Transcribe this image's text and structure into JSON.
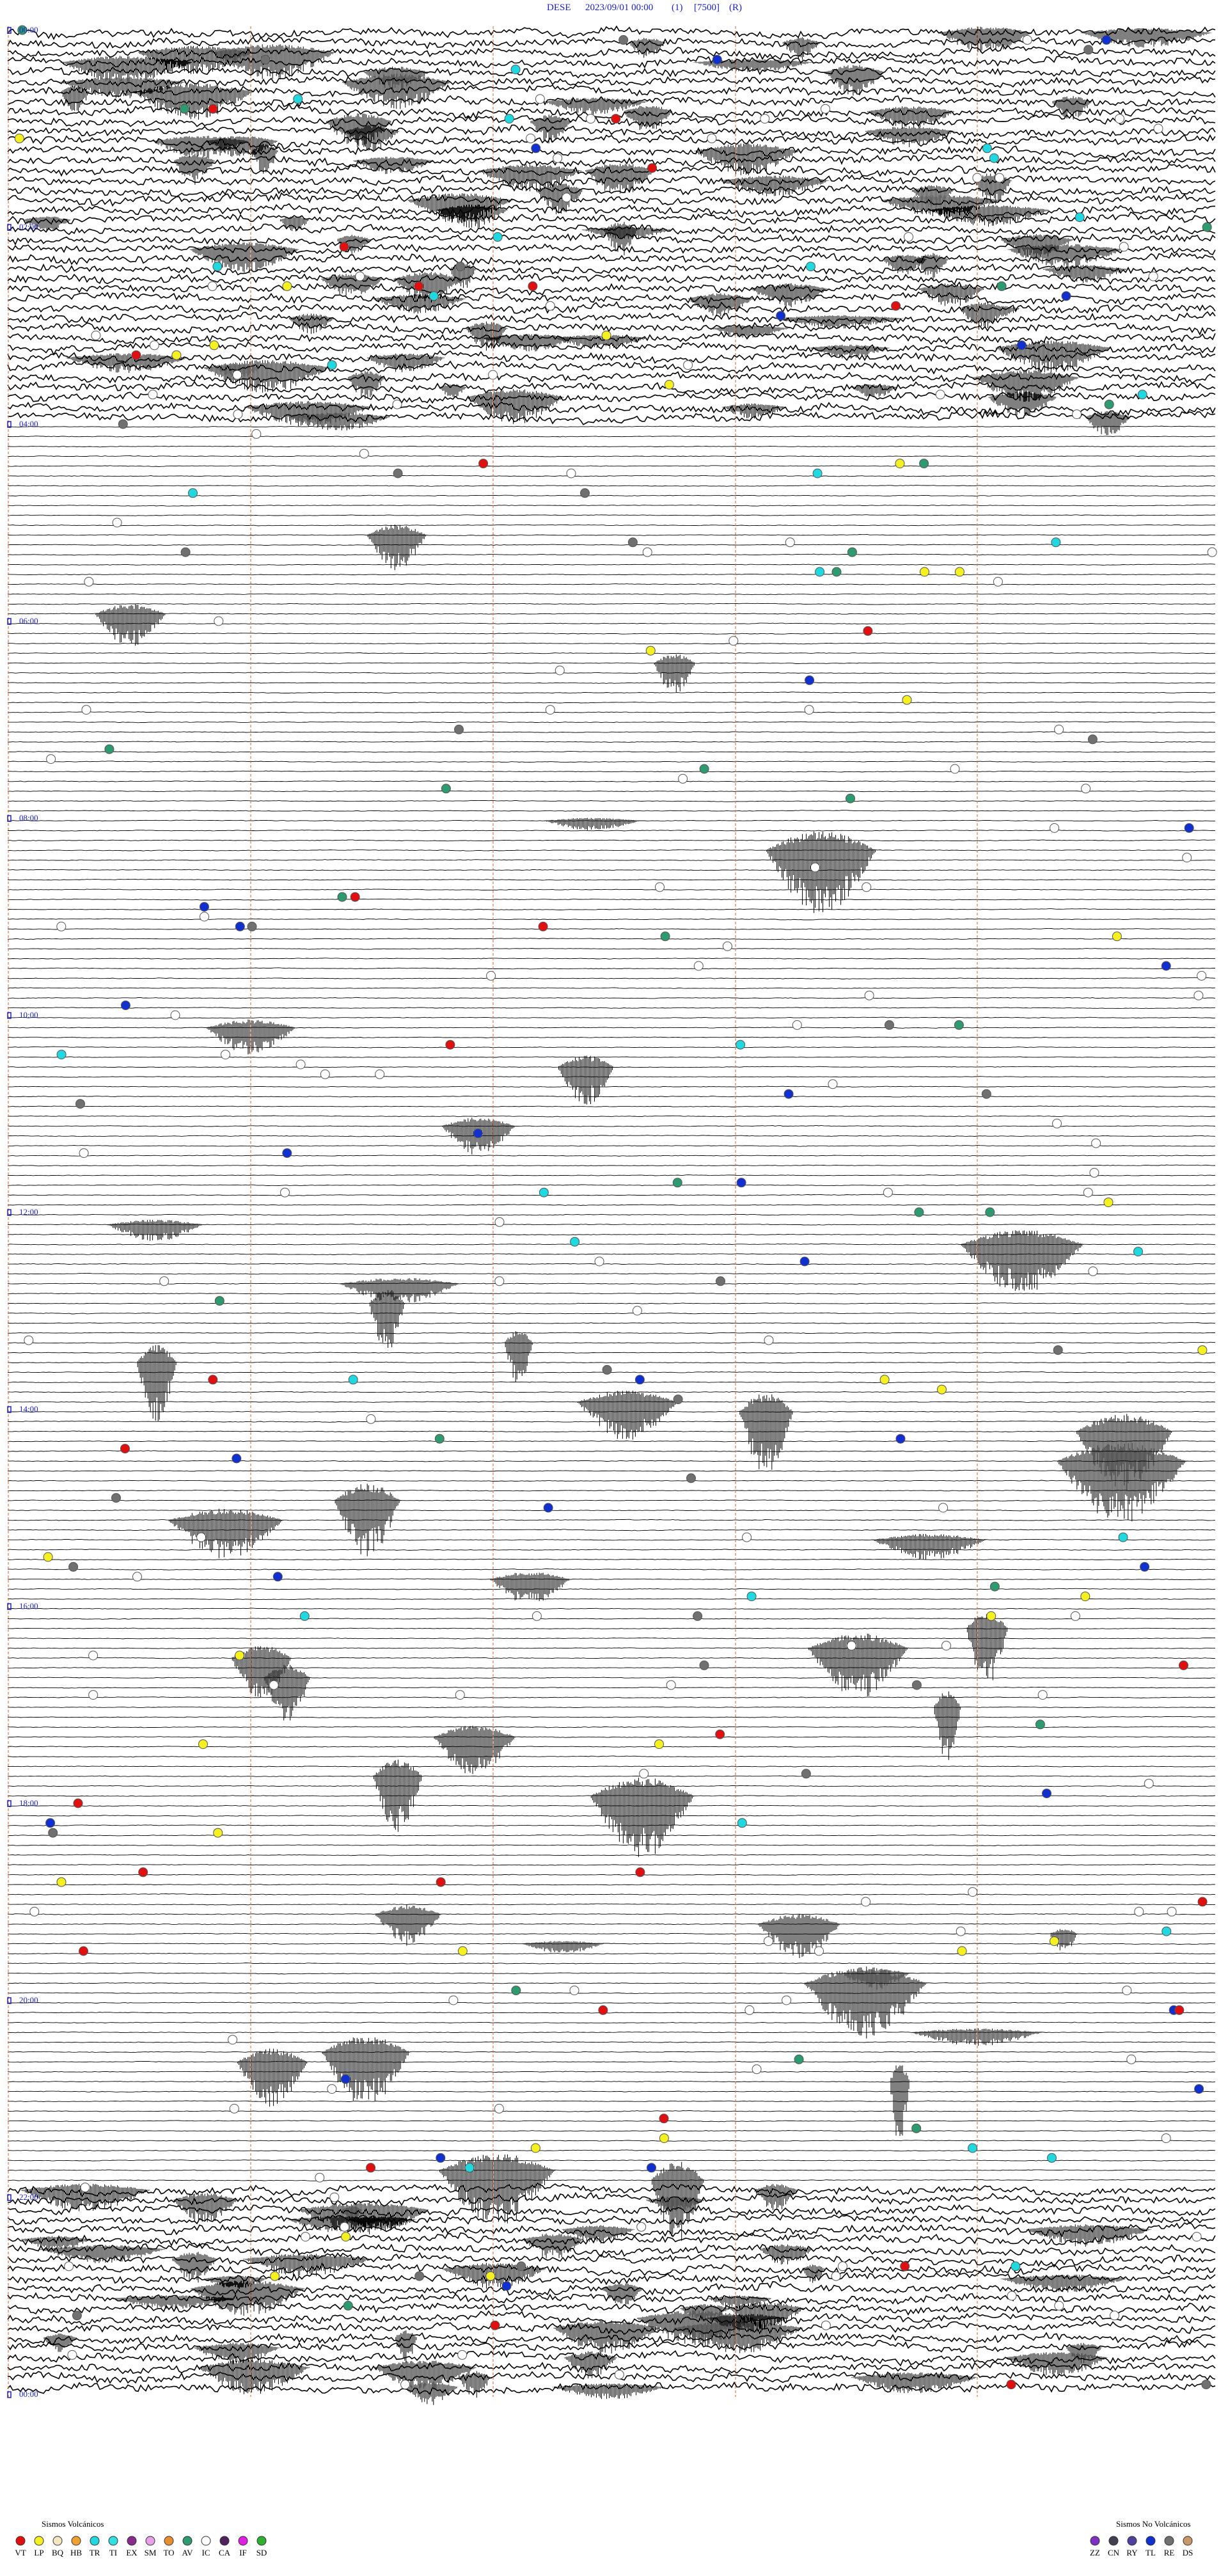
{
  "header": {
    "station": "DESE",
    "datetime": "2023/09/01 00:00",
    "channel": "(1)",
    "scale": "[7500]",
    "mode": "(R)"
  },
  "hour_labels": [
    "00:00",
    "02:00",
    "04:00",
    "06:00",
    "08:00",
    "10:00",
    "12:00",
    "14:00",
    "16:00",
    "18:00",
    "20:00",
    "22:00",
    "00:00"
  ],
  "legend_volcanic": {
    "title": "Sismos Volcánicos",
    "items": [
      {
        "code": "VT",
        "color": "#e01010"
      },
      {
        "code": "LP",
        "color": "#f5f020"
      },
      {
        "code": "BQ",
        "color": "#f4e6c0"
      },
      {
        "code": "HB",
        "color": "#f0a030"
      },
      {
        "code": "TR",
        "color": "#20d8e0"
      },
      {
        "code": "TI",
        "color": "#30e0e0"
      },
      {
        "code": "EX",
        "color": "#8a2a8a"
      },
      {
        "code": "SM",
        "color": "#e8a0e8"
      },
      {
        "code": "TO",
        "color": "#e89030"
      },
      {
        "code": "AV",
        "color": "#2e9a70"
      },
      {
        "code": "IC",
        "color": "#ffffff"
      },
      {
        "code": "CA",
        "color": "#502060"
      },
      {
        "code": "IF",
        "color": "#e020e0"
      },
      {
        "code": "SD",
        "color": "#30b030"
      }
    ]
  },
  "legend_nonvolcanic": {
    "title": "Sismos No Volcánicos",
    "items": [
      {
        "code": "ZZ",
        "color": "#8030c0"
      },
      {
        "code": "CN",
        "color": "#404050"
      },
      {
        "code": "RY",
        "color": "#5040a0"
      },
      {
        "code": "TL",
        "color": "#1030d0"
      },
      {
        "code": "RE",
        "color": "#707070"
      },
      {
        "code": "DS",
        "color": "#c89868"
      }
    ]
  }
}
